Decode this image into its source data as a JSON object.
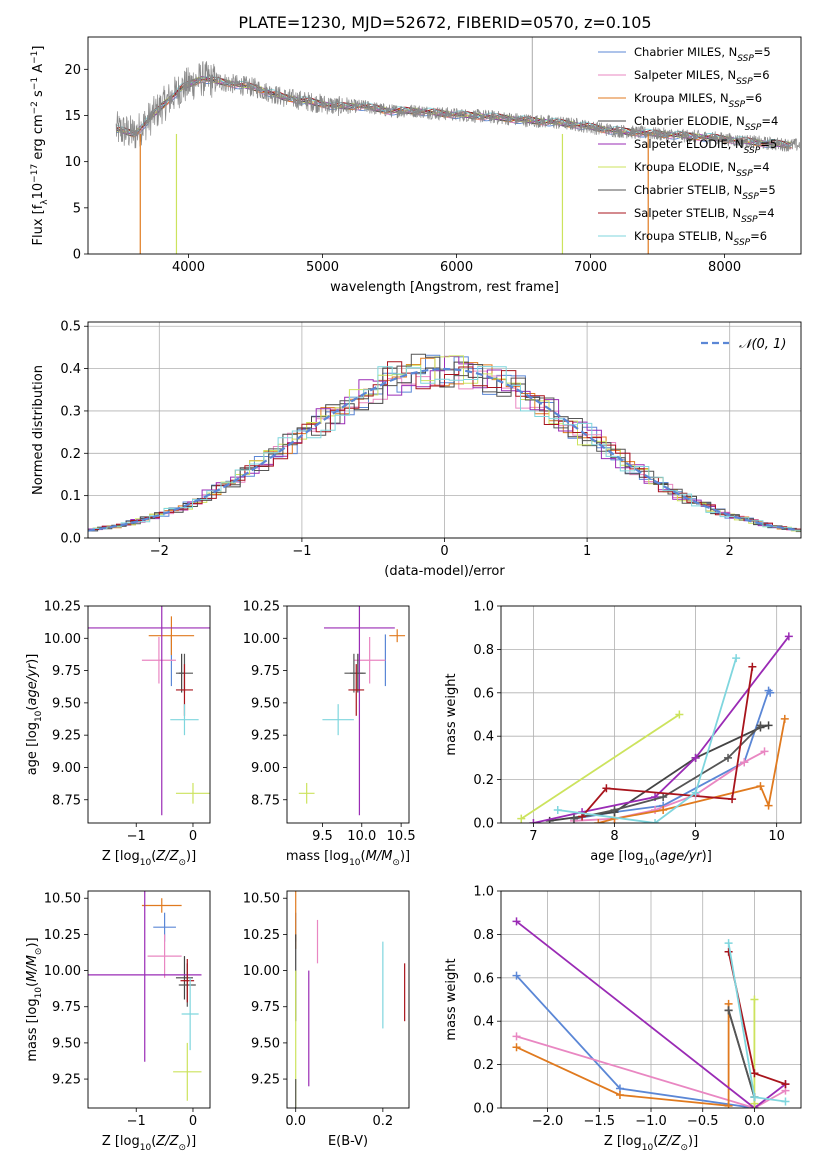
{
  "title": "PLATE=1230, MJD=52672, FIBERID=0570, z=0.105",
  "colors": {
    "Chabrier MILES": "#5b87d6",
    "Salpeter MILES": "#e987c2",
    "Kroupa MILES": "#e07a1f",
    "Chabrier ELODIE": "#444444",
    "Salpeter ELODIE": "#9a2bb5",
    "Kroupa ELODIE": "#cce35d",
    "Chabrier STELIB": "#555555",
    "Salpeter STELIB": "#a8141c",
    "Kroupa STELIB": "#7fd6de",
    "data": "#888888",
    "normal": "#5b87d6"
  },
  "legend1": {
    "entries": [
      {
        "key": "Chabrier MILES",
        "label": "Chabrier MILES, N_SSP=5"
      },
      {
        "key": "Salpeter MILES",
        "label": "Salpeter MILES, N_SSP=6"
      },
      {
        "key": "Kroupa MILES",
        "label": "Kroupa MILES, N_SSP=6"
      },
      {
        "key": "Chabrier ELODIE",
        "label": "Chabrier ELODIE, N_SSP=4"
      },
      {
        "key": "Salpeter ELODIE",
        "label": "Salpeter ELODIE, N_SSP=5"
      },
      {
        "key": "Kroupa ELODIE",
        "label": "Kroupa ELODIE, N_SSP=4"
      },
      {
        "key": "Chabrier STELIB",
        "label": "Chabrier STELIB, N_SSP=5"
      },
      {
        "key": "Salpeter STELIB",
        "label": "Salpeter STELIB, N_SSP=4"
      },
      {
        "key": "Kroupa STELIB",
        "label": "Kroupa STELIB, N_SSP=6"
      }
    ]
  },
  "legend2": {
    "label": "𝒩(0, 1)"
  },
  "chart_data": [
    {
      "id": "spectrum",
      "type": "line",
      "xlabel": "wavelength [Angstrom, rest frame]",
      "ylabel": "Flux [f_λ 10^-17 erg cm^-2 s^-1 A^-1]",
      "xlim": [
        3250,
        8570
      ],
      "ylim": [
        0,
        23.5
      ],
      "xticks": [
        4000,
        5000,
        6000,
        7000,
        8000
      ],
      "yticks": [
        0,
        5,
        10,
        15,
        20
      ],
      "data_continuum": {
        "x": [
          3460,
          3600,
          3800,
          3950,
          4100,
          4300,
          4500,
          4700,
          4900,
          5100,
          5300,
          5500,
          5700,
          5900,
          6100,
          6300,
          6500,
          6700,
          6900,
          7100,
          7300,
          7500,
          7700,
          7900,
          8100,
          8300,
          8500
        ],
        "y": [
          13.5,
          13.0,
          16.0,
          18.0,
          19.0,
          18.5,
          18.0,
          17.0,
          16.5,
          16.0,
          16.0,
          15.5,
          15.5,
          15.2,
          15.0,
          14.8,
          14.5,
          14.3,
          14.0,
          13.5,
          13.2,
          13.0,
          12.8,
          12.6,
          12.3,
          12.0,
          11.8
        ]
      }
    },
    {
      "id": "residuals",
      "type": "line",
      "xlabel": "(data-model)/error",
      "ylabel": "Normed distribution",
      "xlim": [
        -2.5,
        2.5
      ],
      "ylim": [
        0,
        0.51
      ],
      "xticks": [
        -2,
        -1,
        0,
        1,
        2
      ],
      "yticks": [
        0.0,
        0.1,
        0.2,
        0.3,
        0.4,
        0.5
      ],
      "grid": true,
      "series": [
        {
          "name": "𝒩(0, 1)",
          "function": "normal_pdf",
          "mean": 0,
          "sigma": 1
        }
      ]
    },
    {
      "id": "age_vs_Z",
      "type": "scatter",
      "xlabel": "Z [log10(Z/Z⊙)]",
      "ylabel": "age [log10(age/yr)]",
      "xlim": [
        -1.85,
        0.3
      ],
      "ylim": [
        8.57,
        10.25
      ],
      "xticks": [
        -1,
        0
      ],
      "yticks": [
        8.75,
        9.0,
        9.25,
        9.5,
        9.75,
        10.0,
        10.25
      ],
      "points": [
        {
          "key": "Chabrier MILES",
          "x": -0.38,
          "xerr": 0.0,
          "y": 9.83,
          "yerr": 0.2
        },
        {
          "key": "Salpeter MILES",
          "x": -0.6,
          "xerr": 0.3,
          "y": 9.83,
          "yerr": 0.18
        },
        {
          "key": "Kroupa MILES",
          "x": -0.38,
          "xerr": 0.4,
          "y": 10.02,
          "yerr": 0.15
        },
        {
          "key": "Chabrier ELODIE",
          "x": -0.2,
          "xerr": 0.05,
          "y": 9.73,
          "yerr": 0.15
        },
        {
          "key": "Salpeter ELODIE",
          "x": -0.55,
          "xerr": 1.3,
          "y": 10.08,
          "yerr": 1.45
        },
        {
          "key": "Kroupa ELODIE",
          "x": 0.0,
          "xerr": 0.3,
          "y": 8.8,
          "yerr": 0.08
        },
        {
          "key": "Chabrier STELIB",
          "x": -0.15,
          "xerr": 0.15,
          "y": 9.73,
          "yerr": 0.15
        },
        {
          "key": "Salpeter STELIB",
          "x": -0.15,
          "xerr": 0.15,
          "y": 9.6,
          "yerr": 0.2
        },
        {
          "key": "Kroupa STELIB",
          "x": -0.15,
          "xerr": 0.25,
          "y": 9.37,
          "yerr": 0.12
        }
      ]
    },
    {
      "id": "age_vs_mass",
      "type": "scatter",
      "xlabel": "mass [log10(M/M⊙)]",
      "ylabel": "",
      "xlim": [
        9.05,
        10.6
      ],
      "ylim": [
        8.57,
        10.25
      ],
      "xticks": [
        9.5,
        10.0,
        10.5
      ],
      "yticks": [
        8.75,
        9.0,
        9.25,
        9.5,
        9.75,
        10.0,
        10.25
      ],
      "points": [
        {
          "key": "Chabrier MILES",
          "x": 10.3,
          "xerr": 0.0,
          "y": 9.83,
          "yerr": 0.2
        },
        {
          "key": "Salpeter MILES",
          "x": 10.1,
          "xerr": 0.2,
          "y": 9.83,
          "yerr": 0.18
        },
        {
          "key": "Kroupa MILES",
          "x": 10.45,
          "xerr": 0.1,
          "y": 10.02,
          "yerr": 0.05
        },
        {
          "key": "Chabrier ELODIE",
          "x": 9.95,
          "xerr": 0.1,
          "y": 9.73,
          "yerr": 0.15
        },
        {
          "key": "Salpeter ELODIE",
          "x": 9.97,
          "xerr": 0.45,
          "y": 10.08,
          "yerr": 1.45
        },
        {
          "key": "Kroupa ELODIE",
          "x": 9.3,
          "xerr": 0.1,
          "y": 8.8,
          "yerr": 0.08
        },
        {
          "key": "Chabrier STELIB",
          "x": 9.9,
          "xerr": 0.12,
          "y": 9.73,
          "yerr": 0.15
        },
        {
          "key": "Salpeter STELIB",
          "x": 9.93,
          "xerr": 0.1,
          "y": 9.6,
          "yerr": 0.2
        },
        {
          "key": "Kroupa STELIB",
          "x": 9.7,
          "xerr": 0.2,
          "y": 9.37,
          "yerr": 0.12
        }
      ]
    },
    {
      "id": "weight_vs_age",
      "type": "line",
      "xlabel": "age [log10(age/yr)]",
      "ylabel": "mass weight",
      "xlim": [
        6.6,
        10.3
      ],
      "ylim": [
        0,
        1.0
      ],
      "xticks": [
        7,
        8,
        9,
        10
      ],
      "yticks": [
        0.0,
        0.2,
        0.4,
        0.6,
        0.8,
        1.0
      ],
      "grid": true,
      "series": [
        {
          "key": "Chabrier MILES",
          "x": [
            7.5,
            8.0,
            8.6,
            9.6,
            9.9,
            9.92
          ],
          "y": [
            0.02,
            0.05,
            0.08,
            0.28,
            0.61,
            0.6
          ]
        },
        {
          "key": "Salpeter MILES",
          "x": [
            7.5,
            8.0,
            8.5,
            9.0,
            9.6,
            9.85
          ],
          "y": [
            0.01,
            0.02,
            0.06,
            0.13,
            0.28,
            0.33
          ]
        },
        {
          "key": "Kroupa MILES",
          "x": [
            7.8,
            8.0,
            8.6,
            9.8,
            9.9,
            10.1
          ],
          "y": [
            0.0,
            0.02,
            0.06,
            0.17,
            0.08,
            0.48
          ]
        },
        {
          "key": "Chabrier ELODIE",
          "x": [
            7.2,
            8.0,
            9.0,
            9.8,
            9.9
          ],
          "y": [
            0.01,
            0.05,
            0.3,
            0.44,
            0.45
          ]
        },
        {
          "key": "Salpeter ELODIE",
          "x": [
            7.0,
            7.6,
            8.5,
            9.0,
            10.15
          ],
          "y": [
            0.0,
            0.05,
            0.12,
            0.3,
            0.86
          ]
        },
        {
          "key": "Kroupa ELODIE",
          "x": [
            6.85,
            8.8
          ],
          "y": [
            0.02,
            0.5
          ]
        },
        {
          "key": "Chabrier STELIB",
          "x": [
            7.5,
            8.0,
            8.6,
            9.4,
            9.8
          ],
          "y": [
            0.02,
            0.06,
            0.12,
            0.3,
            0.45
          ]
        },
        {
          "key": "Salpeter STELIB",
          "x": [
            7.6,
            7.9,
            9.45,
            9.7
          ],
          "y": [
            0.03,
            0.16,
            0.11,
            0.72
          ]
        },
        {
          "key": "Kroupa STELIB",
          "x": [
            7.3,
            8.5,
            9.0,
            9.5
          ],
          "y": [
            0.06,
            0.0,
            0.14,
            0.76
          ]
        }
      ]
    },
    {
      "id": "mass_vs_Z",
      "type": "scatter",
      "xlabel": "Z [log10(Z/Z⊙)]",
      "ylabel": "mass [log10(M/M⊙)]",
      "xlim": [
        -1.85,
        0.3
      ],
      "ylim": [
        9.05,
        10.55
      ],
      "xticks": [
        -1,
        0
      ],
      "yticks": [
        9.25,
        9.5,
        9.75,
        10.0,
        10.25,
        10.5
      ],
      "points": [
        {
          "key": "Chabrier MILES",
          "x": -0.5,
          "xerr": 0.2,
          "y": 10.3,
          "yerr": 0.1
        },
        {
          "key": "Salpeter MILES",
          "x": -0.5,
          "xerr": 0.3,
          "y": 10.1,
          "yerr": 0.15
        },
        {
          "key": "Kroupa MILES",
          "x": -0.55,
          "xerr": 0.35,
          "y": 10.45,
          "yerr": 0.05
        },
        {
          "key": "Chabrier ELODIE",
          "x": -0.15,
          "xerr": 0.15,
          "y": 9.95,
          "yerr": 0.15
        },
        {
          "key": "Salpeter ELODIE",
          "x": -0.85,
          "xerr": 1.0,
          "y": 9.97,
          "yerr": 0.6
        },
        {
          "key": "Kroupa ELODIE",
          "x": -0.1,
          "xerr": 0.25,
          "y": 9.3,
          "yerr": 0.2
        },
        {
          "key": "Chabrier STELIB",
          "x": -0.1,
          "xerr": 0.15,
          "y": 9.9,
          "yerr": 0.15
        },
        {
          "key": "Salpeter STELIB",
          "x": -0.1,
          "xerr": 0.12,
          "y": 9.93,
          "yerr": 0.15
        },
        {
          "key": "Kroupa STELIB",
          "x": -0.05,
          "xerr": 0.15,
          "y": 9.7,
          "yerr": 0.25
        }
      ]
    },
    {
      "id": "mass_vs_EBV",
      "type": "scatter",
      "xlabel": "E(B-V)",
      "ylabel": "",
      "xlim": [
        -0.02,
        0.26
      ],
      "ylim": [
        9.05,
        10.55
      ],
      "xticks": [
        0.0,
        0.2
      ],
      "yticks": [
        9.25,
        9.5,
        9.75,
        10.0,
        10.25,
        10.5
      ],
      "points": [
        {
          "key": "Chabrier MILES",
          "x": 0.0,
          "xerr": 0.0,
          "y": 10.3,
          "yerr": 0.1
        },
        {
          "key": "Salpeter MILES",
          "x": 0.05,
          "xerr": 0.0,
          "y": 10.2,
          "yerr": 0.15
        },
        {
          "key": "Kroupa MILES",
          "x": 0.0,
          "xerr": 0.0,
          "y": 10.35,
          "yerr": 0.2
        },
        {
          "key": "Chabrier ELODIE",
          "x": 0.0,
          "xerr": 0.0,
          "y": 9.95,
          "yerr": 0.3
        },
        {
          "key": "Salpeter ELODIE",
          "x": 0.03,
          "xerr": 0.0,
          "y": 9.6,
          "yerr": 0.4
        },
        {
          "key": "Kroupa ELODIE",
          "x": 0.0,
          "xerr": 0.0,
          "y": 9.3,
          "yerr": 0.7
        },
        {
          "key": "Chabrier STELIB",
          "x": 0.0,
          "xerr": 0.0,
          "y": 9.15,
          "yerr": 0.1
        },
        {
          "key": "Salpeter STELIB",
          "x": 0.25,
          "xerr": 0.0,
          "y": 9.85,
          "yerr": 0.2
        },
        {
          "key": "Kroupa STELIB",
          "x": 0.2,
          "xerr": 0.0,
          "y": 9.9,
          "yerr": 0.3
        }
      ]
    },
    {
      "id": "weight_vs_Z",
      "type": "line",
      "xlabel": "Z [log10(Z/Z⊙)]",
      "ylabel": "mass weight",
      "xlim": [
        -2.45,
        0.45
      ],
      "ylim": [
        0,
        1.0
      ],
      "xticks": [
        -2.0,
        -1.5,
        -1.0,
        -0.5,
        0.0
      ],
      "yticks": [
        0.0,
        0.2,
        0.4,
        0.6,
        0.8,
        1.0
      ],
      "grid": true,
      "series": [
        {
          "key": "Chabrier MILES",
          "x": [
            -2.3,
            -1.3,
            0.0
          ],
          "y": [
            0.61,
            0.09,
            0.0
          ]
        },
        {
          "key": "Salpeter MILES",
          "x": [
            -2.3,
            0.0,
            0.3
          ],
          "y": [
            0.33,
            0.0,
            0.08
          ]
        },
        {
          "key": "Kroupa MILES",
          "x": [
            -2.3,
            -1.3,
            -0.25,
            -0.25
          ],
          "y": [
            0.28,
            0.06,
            0.01,
            0.48
          ]
        },
        {
          "key": "Chabrier ELODIE",
          "x": [
            -0.25,
            0.0
          ],
          "y": [
            0.45,
            0.05
          ]
        },
        {
          "key": "Salpeter ELODIE",
          "x": [
            -2.3,
            0.0,
            0.3
          ],
          "y": [
            0.86,
            0.0,
            0.11
          ]
        },
        {
          "key": "Kroupa ELODIE",
          "x": [
            0.0,
            0.0
          ],
          "y": [
            0.02,
            0.5
          ]
        },
        {
          "key": "Chabrier STELIB",
          "x": [
            -0.25,
            0.0
          ],
          "y": [
            0.45,
            0.05
          ]
        },
        {
          "key": "Salpeter STELIB",
          "x": [
            -0.25,
            0.0,
            0.3
          ],
          "y": [
            0.72,
            0.16,
            0.11
          ]
        },
        {
          "key": "Kroupa STELIB",
          "x": [
            -0.25,
            0.0,
            0.3
          ],
          "y": [
            0.76,
            0.05,
            0.03
          ]
        }
      ]
    }
  ]
}
